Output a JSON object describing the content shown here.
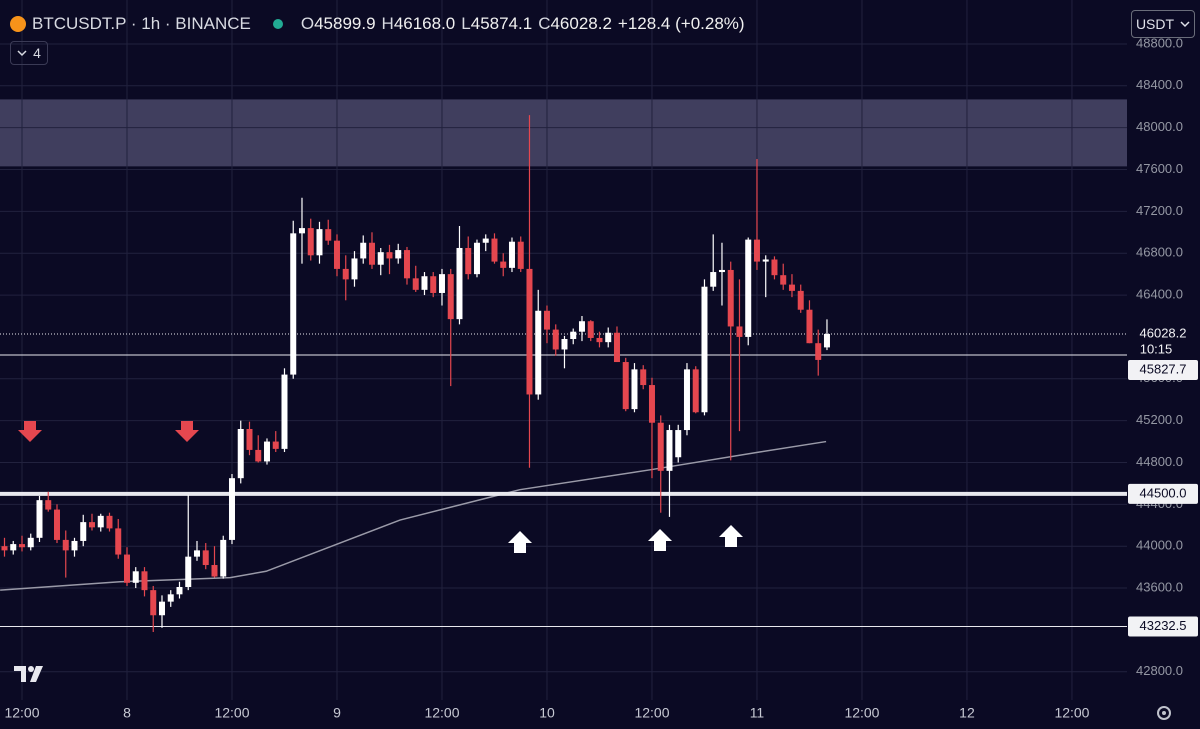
{
  "header": {
    "title": "BTCUSDT.P · 1h · BINANCE",
    "legend": [
      {
        "key": "O",
        "value": "45899.9"
      },
      {
        "key": "H",
        "value": "46168.0"
      },
      {
        "key": "L",
        "value": "45874.1"
      },
      {
        "key": "C",
        "value": "46028.2"
      }
    ],
    "change": "+128.4 (+0.28%)",
    "indicators": "4",
    "currency": "USDT"
  },
  "chart_data": {
    "type": "candlestick",
    "up_color": "#ffffff",
    "down_color": "#e5474f",
    "xlim": [
      -2.514,
      126.29
    ],
    "ylim": [
      42530,
      49220
    ],
    "xticks": [
      {
        "value": 0,
        "label": "12:00"
      },
      {
        "value": 12,
        "label": "8"
      },
      {
        "value": 24,
        "label": "12:00"
      },
      {
        "value": 36,
        "label": "9"
      },
      {
        "value": 48,
        "label": "12:00"
      },
      {
        "value": 60,
        "label": "10"
      },
      {
        "value": 72,
        "label": "12:00"
      },
      {
        "value": 84,
        "label": "11"
      },
      {
        "value": 96,
        "label": "12:00"
      },
      {
        "value": 108,
        "label": "12"
      },
      {
        "value": 120,
        "label": "12:00"
      }
    ],
    "yticks": [
      {
        "value": 42800,
        "label": "42800.0"
      },
      {
        "value": 43600,
        "label": "43600.0"
      },
      {
        "value": 44000,
        "label": "44000.0"
      },
      {
        "value": 44400,
        "label": "44400.0"
      },
      {
        "value": 44800,
        "label": "44800.0"
      },
      {
        "value": 45200,
        "label": "45200.0"
      },
      {
        "value": 45600,
        "label": "45600.0"
      },
      {
        "value": 46400,
        "label": "46400.0"
      },
      {
        "value": 46800,
        "label": "46800.0"
      },
      {
        "value": 47200,
        "label": "47200.0"
      },
      {
        "value": 47600,
        "label": "47600.0"
      },
      {
        "value": 48000,
        "label": "48000.0"
      },
      {
        "value": 48400,
        "label": "48400.0"
      },
      {
        "value": 48800,
        "label": "48800.0"
      }
    ],
    "grid": true,
    "x": [
      -2,
      -1,
      0,
      1,
      2,
      3,
      4,
      5,
      6,
      7,
      8,
      9,
      10,
      11,
      12,
      13,
      14,
      15,
      16,
      17,
      18,
      19,
      20,
      21,
      22,
      23,
      24,
      25,
      26,
      27,
      28,
      29,
      30,
      31,
      32,
      33,
      34,
      35,
      36,
      37,
      38,
      39,
      40,
      41,
      42,
      43,
      44,
      45,
      46,
      47,
      48,
      49,
      50,
      51,
      52,
      53,
      54,
      55,
      56,
      57,
      58,
      59,
      60,
      61,
      62,
      63,
      64,
      65,
      66,
      67,
      68,
      69,
      70,
      71,
      72,
      73,
      74,
      75,
      76,
      77,
      78,
      79,
      80,
      81,
      82,
      83,
      84,
      85,
      86,
      87,
      88,
      89,
      90,
      91,
      92
    ],
    "open": [
      44000,
      43960,
      44020,
      43990,
      44080,
      44440,
      44350,
      44060,
      43960,
      44050,
      44230,
      44180,
      44290,
      44170,
      43920,
      43650,
      43760,
      43580,
      43340,
      43470,
      43540,
      43610,
      43900,
      43960,
      43820,
      43710,
      44060,
      44650,
      45120,
      44920,
      44810,
      45000,
      44930,
      45640,
      46990,
      47040,
      46780,
      47030,
      46920,
      46650,
      46550,
      46750,
      46900,
      46690,
      46810,
      46750,
      46830,
      46560,
      46450,
      46580,
      46420,
      46600,
      46170,
      46850,
      46600,
      46900,
      46940,
      46720,
      46660,
      46910,
      46650,
      45450,
      46250,
      46070,
      45880,
      45980,
      46050,
      46150,
      45990,
      45950,
      46040,
      45760,
      45310,
      45690,
      45540,
      45180,
      44720,
      44850,
      45110,
      45690,
      45280,
      46480,
      46620,
      46640,
      46100,
      46000,
      46930,
      46720,
      46740,
      46590,
      46500,
      46440,
      46260,
      45940,
      45899.9
    ],
    "high": [
      44080,
      44050,
      44100,
      44120,
      44480,
      44520,
      44400,
      44150,
      44080,
      44300,
      44310,
      44310,
      44320,
      44260,
      43990,
      43800,
      43800,
      43620,
      43530,
      43580,
      43660,
      44490,
      44050,
      44030,
      44000,
      44100,
      44690,
      45200,
      45190,
      45060,
      45030,
      45100,
      45700,
      47110,
      47330,
      47130,
      47100,
      47120,
      46980,
      46780,
      46820,
      46970,
      47000,
      46850,
      46880,
      46890,
      46860,
      46680,
      46620,
      46620,
      46650,
      46650,
      47060,
      46960,
      46930,
      46980,
      46990,
      46800,
      46950,
      46960,
      48120,
      46450,
      46300,
      46120,
      46010,
      46080,
      46200,
      46160,
      46050,
      46090,
      46100,
      45800,
      45750,
      45730,
      45610,
      45250,
      45160,
      45160,
      45750,
      45720,
      46550,
      46980,
      46900,
      46720,
      46550,
      46950,
      47700,
      46780,
      46770,
      46700,
      46600,
      46500,
      46350,
      46070,
      46168
    ],
    "low": [
      43900,
      43920,
      43950,
      43960,
      44040,
      44330,
      44030,
      43700,
      43900,
      44000,
      44150,
      44140,
      44140,
      43880,
      43620,
      43600,
      43520,
      43180,
      43220,
      43420,
      43500,
      43580,
      43860,
      43780,
      43700,
      43690,
      44020,
      44600,
      44870,
      44800,
      44780,
      44900,
      44900,
      45600,
      46700,
      46730,
      46700,
      46880,
      46580,
      46350,
      46480,
      46700,
      46650,
      46590,
      46600,
      46700,
      46500,
      46430,
      46400,
      46380,
      46300,
      45530,
      46120,
      46550,
      46570,
      46820,
      46700,
      46580,
      46620,
      46620,
      44750,
      45400,
      45940,
      45820,
      45700,
      45930,
      45960,
      45960,
      45900,
      45900,
      45760,
      45290,
      45280,
      45500,
      44650,
      44320,
      44280,
      44800,
      45060,
      45270,
      45250,
      46440,
      46300,
      44820,
      45100,
      45920,
      46640,
      46380,
      46550,
      46450,
      46380,
      46230,
      45940,
      45630,
      45874.1
    ],
    "close": [
      43960,
      44020,
      43990,
      44080,
      44440,
      44350,
      44060,
      43960,
      44050,
      44230,
      44180,
      44290,
      44170,
      43920,
      43650,
      43760,
      43580,
      43340,
      43470,
      43540,
      43610,
      43900,
      43960,
      43820,
      43710,
      44060,
      44650,
      45120,
      44920,
      44810,
      45000,
      44930,
      45640,
      46990,
      47040,
      46780,
      47030,
      46920,
      46650,
      46550,
      46750,
      46900,
      46690,
      46810,
      46750,
      46830,
      46560,
      46450,
      46580,
      46420,
      46600,
      46170,
      46850,
      46600,
      46900,
      46940,
      46720,
      46660,
      46910,
      46650,
      45450,
      46250,
      46070,
      45880,
      45980,
      46050,
      46150,
      45990,
      45950,
      46040,
      45760,
      45310,
      45690,
      45540,
      45180,
      44720,
      45110,
      45110,
      45690,
      45280,
      46480,
      46620,
      46640,
      46100,
      46000,
      46930,
      46720,
      46740,
      46590,
      46500,
      46440,
      46260,
      45940,
      45780,
      46028.2
    ],
    "moving_average": {
      "color": "#9a9aa8",
      "x": [
        -2.5,
        11.2,
        23.8,
        27.9,
        43.2,
        56.9,
        71.8,
        84.3,
        91.9
      ],
      "values": [
        43580,
        43660,
        43700,
        43760,
        44250,
        44540,
        44730,
        44900,
        45000
      ]
    },
    "zone": {
      "from": 47630,
      "to": 48270,
      "color": "#4a4868"
    },
    "price_lines": [
      {
        "value": 46028.2,
        "label": "46028.2",
        "countdown": "10:15",
        "style": "dotted"
      },
      {
        "value": 45827.7,
        "label": "45827.7",
        "style": "thin"
      },
      {
        "value": 44500,
        "label": "44500.0",
        "style": "thick"
      },
      {
        "value": 43232.5,
        "label": "43232.5",
        "style": "thin"
      }
    ]
  }
}
